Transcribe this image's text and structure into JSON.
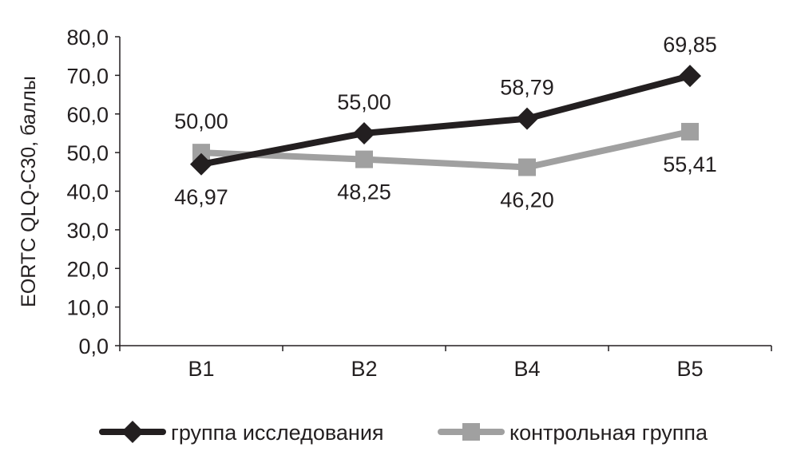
{
  "chart_data": {
    "type": "line",
    "categories": [
      "B1",
      "B2",
      "B4",
      "B5"
    ],
    "ylabel": "EORTC QLQ-C30, баллы",
    "ylim": [
      0,
      80
    ],
    "yticks": [
      "0,0",
      "10,0",
      "20,0",
      "30,0",
      "40,0",
      "50,0",
      "60,0",
      "70,0",
      "80,0"
    ],
    "grid": false,
    "legend_position": "bottom",
    "series": [
      {
        "name": "группа исследования",
        "values": [
          46.97,
          55.0,
          58.79,
          69.85
        ],
        "labels": [
          "46,97",
          "55,00",
          "58,79",
          "69,85"
        ],
        "label_positions": [
          "below",
          "above",
          "above",
          "above"
        ],
        "marker": "diamond",
        "color": "#231f20"
      },
      {
        "name": "контрольная группа",
        "values": [
          50.0,
          48.25,
          46.2,
          55.41
        ],
        "labels": [
          "50,00",
          "48,25",
          "46,20",
          "55,41"
        ],
        "label_positions": [
          "above",
          "below",
          "below",
          "below"
        ],
        "marker": "square",
        "color": "#a0a0a0"
      }
    ]
  }
}
